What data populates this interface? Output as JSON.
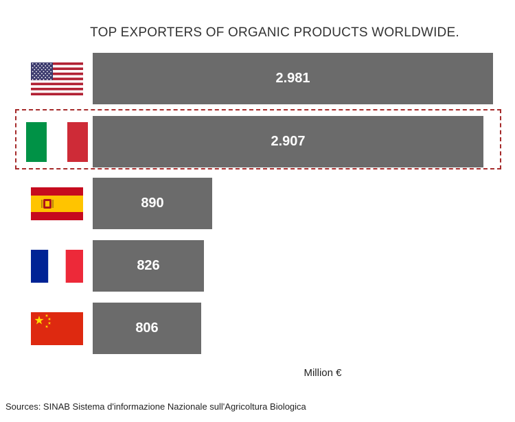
{
  "chart_data": {
    "type": "bar",
    "orientation": "horizontal",
    "title": "TOP EXPORTERS OF ORGANIC PRODUCTS WORLDWIDE.",
    "categories": [
      "USA",
      "Italy",
      "Spain",
      "France",
      "China"
    ],
    "values": [
      2981,
      2907,
      890,
      826,
      806
    ],
    "value_labels": [
      "2.981",
      "2.907",
      "890",
      "826",
      "806"
    ],
    "unit_label": "Million €",
    "highlighted_category": "Italy",
    "bar_color": "#6b6b6b",
    "grid": false,
    "legend": "none"
  },
  "icons": [
    "usa-flag-icon",
    "italy-flag-icon",
    "spain-flag-icon",
    "france-flag-icon",
    "china-flag-icon"
  ],
  "footer": {
    "source": "Sources: SINAB Sistema d'informazione Nazionale sull'Agricoltura Biologica"
  },
  "colors": {
    "highlight_border": "#a52a2a"
  }
}
